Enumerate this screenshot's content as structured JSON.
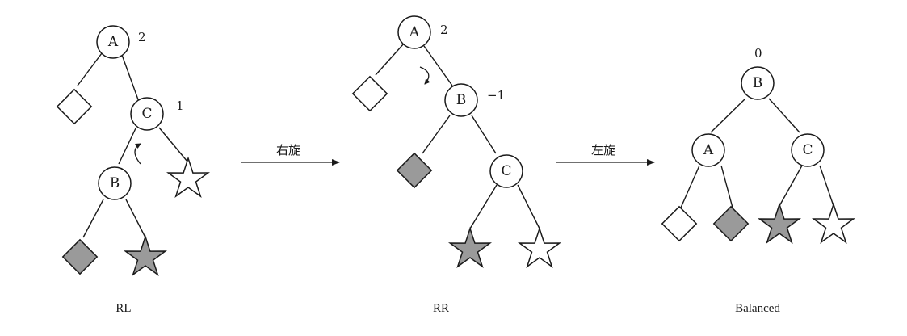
{
  "colors": {
    "stroke": "#1a1a1a",
    "gray_fill": "#9a9a9a",
    "white_fill": "#ffffff"
  },
  "diagram1": {
    "caption": "RL",
    "nodes": {
      "A": {
        "label": "A",
        "bf": "2"
      },
      "C": {
        "label": "C",
        "bf": "1"
      },
      "B": {
        "label": "B"
      }
    },
    "leaves": [
      "white-diamond",
      "white-star",
      "gray-diamond",
      "gray-star"
    ]
  },
  "arrow1": {
    "label": "右旋"
  },
  "diagram2": {
    "caption": "RR",
    "nodes": {
      "A": {
        "label": "A",
        "bf": "2"
      },
      "B": {
        "label": "B",
        "bf": "−1"
      },
      "C": {
        "label": "C"
      }
    },
    "leaves": [
      "white-diamond",
      "gray-diamond",
      "gray-star",
      "white-star"
    ]
  },
  "arrow2": {
    "label": "左旋"
  },
  "diagram3": {
    "caption": "Balanced",
    "nodes": {
      "B": {
        "label": "B",
        "bf": "0"
      },
      "A": {
        "label": "A"
      },
      "C": {
        "label": "C"
      }
    },
    "leaves": [
      "white-diamond",
      "gray-diamond",
      "gray-star",
      "white-star"
    ]
  }
}
